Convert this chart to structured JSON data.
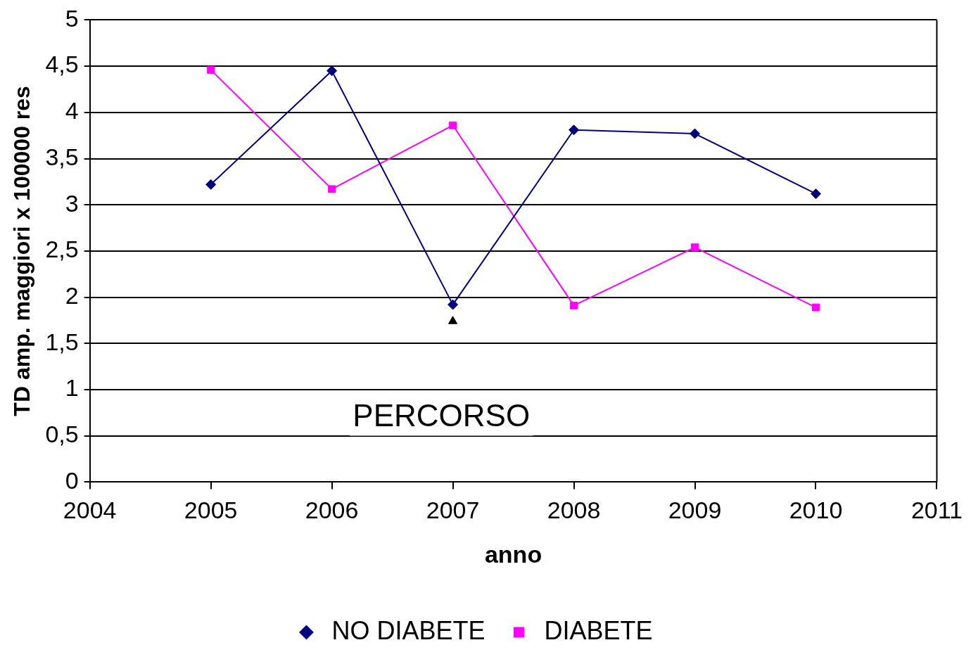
{
  "chart_data": {
    "type": "line",
    "xlabel": "anno",
    "ylabel": "TD amp. maggiori x 100000 res",
    "x": [
      2005,
      2006,
      2007,
      2008,
      2009,
      2010
    ],
    "series": [
      {
        "name": "NO DIABETE",
        "color": "#000080",
        "marker": "diamond",
        "values": [
          3.22,
          4.45,
          1.92,
          3.81,
          3.77,
          3.12
        ]
      },
      {
        "name": "DIABETE",
        "color": "#ff00ff",
        "marker": "square",
        "values": [
          4.46,
          3.17,
          3.86,
          1.91,
          2.54,
          1.89
        ]
      },
      {
        "type": "scatter",
        "color": "#000000",
        "marker": "triangle",
        "x": [
          2007
        ],
        "values": [
          1.74
        ]
      }
    ],
    "xlim": [
      2004,
      2011
    ],
    "xticks": [
      2004,
      2005,
      2006,
      2007,
      2008,
      2009,
      2010,
      2011
    ],
    "ylim": [
      0,
      5
    ],
    "yticks": [
      0,
      {
        "value": 0.5,
        "label": "0,5"
      },
      1,
      {
        "value": 1.5,
        "label": "1,5"
      },
      2,
      {
        "value": 2.5,
        "label": "2,5"
      },
      3,
      {
        "value": 3.5,
        "label": "3,5"
      },
      4,
      {
        "value": 4.5,
        "label": "4,5"
      },
      5
    ],
    "grid": "y",
    "legend": "bottom",
    "annotations": [
      "PERCORSO"
    ]
  }
}
